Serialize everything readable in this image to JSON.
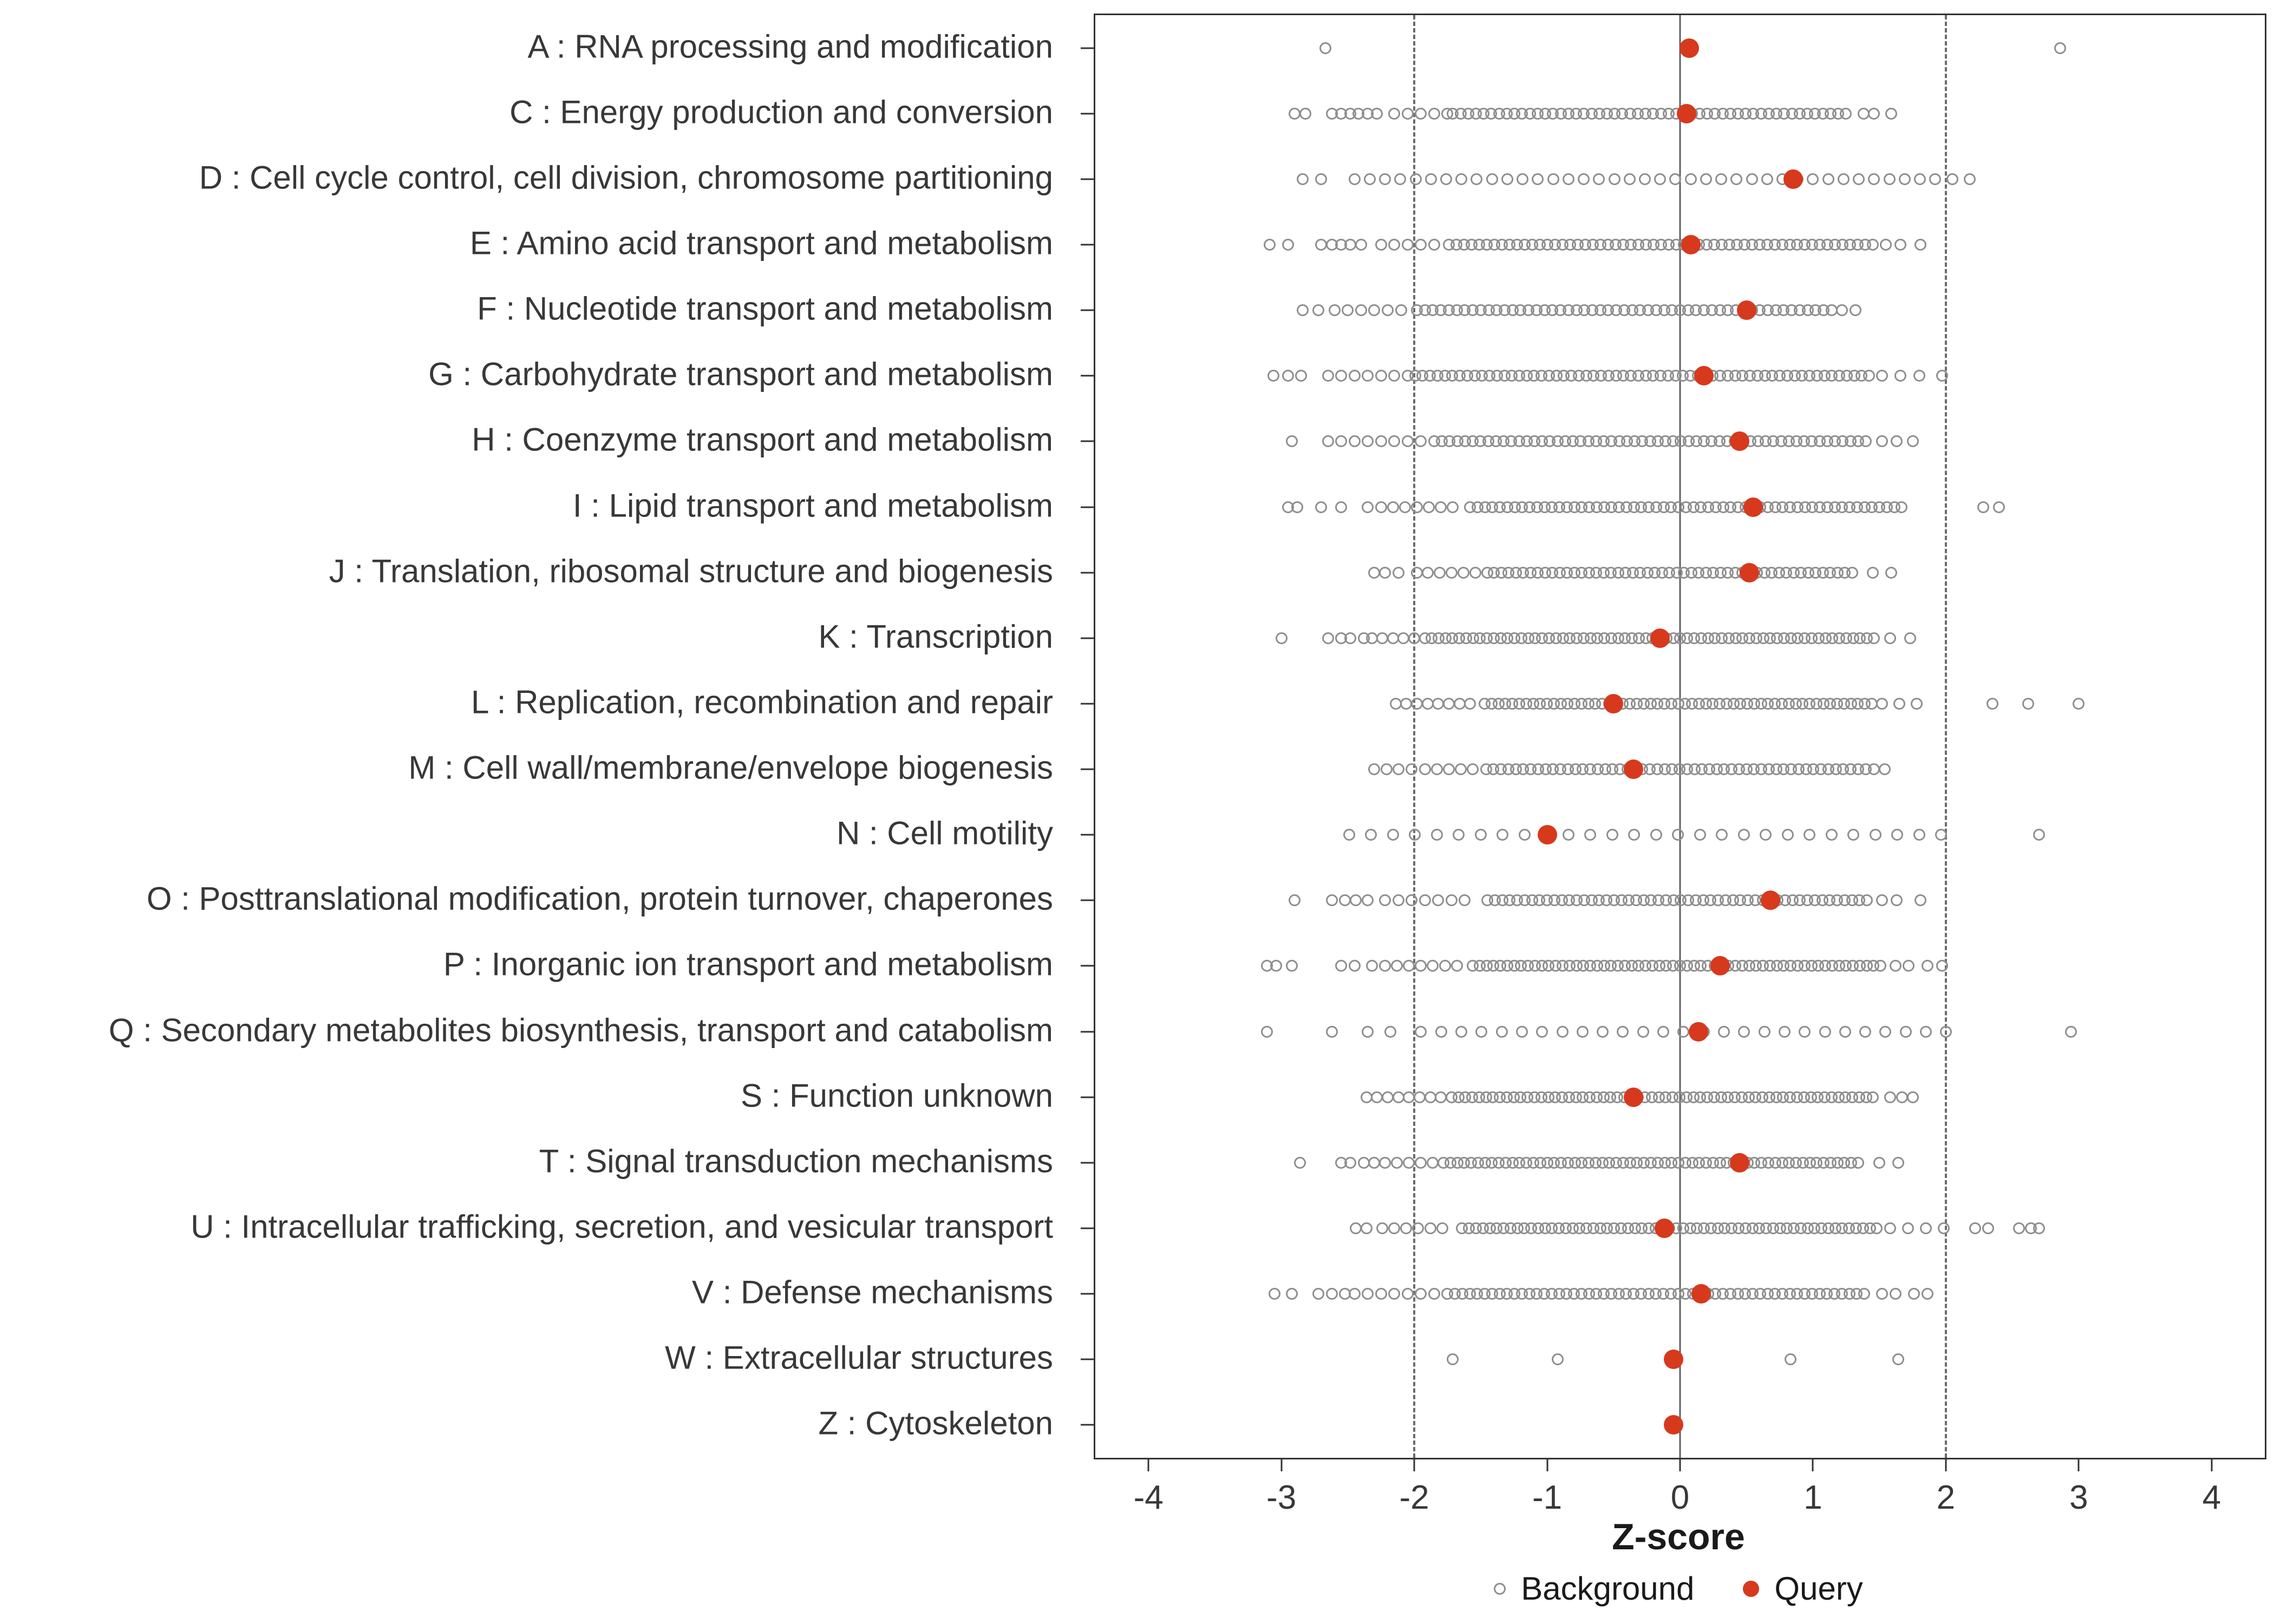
{
  "figure": {
    "xlabel": "Z-score",
    "legend": {
      "background_label": "Background",
      "query_label": "Query"
    }
  },
  "colors": {
    "query": "#d7391d",
    "background_stroke": "#8f8f8f",
    "axis": "#333333",
    "refline": "#5f5f5f"
  },
  "chart_data": {
    "type": "scatter",
    "title": "",
    "xlabel": "Z-score",
    "ylabel": "",
    "xlim": [
      -4.4,
      4.4
    ],
    "xticks": [
      -4,
      -3,
      -2,
      -1,
      0,
      1,
      2,
      3,
      4
    ],
    "grid": false,
    "legend_position": "bottom",
    "reference_lines": [
      {
        "x": -2,
        "style": "dashed"
      },
      {
        "x": 0,
        "style": "solid"
      },
      {
        "x": 2,
        "style": "dashed"
      }
    ],
    "series_names": [
      "Background",
      "Query"
    ],
    "categories": [
      {
        "label": "A : RNA processing and modification",
        "query": 0.07,
        "background": {
          "singles": [
            -2.67,
            2.86
          ],
          "runs": []
        }
      },
      {
        "label": "C : Energy production and conversion",
        "query": 0.05,
        "background": {
          "singles": [
            -2.9,
            -2.82,
            -2.62,
            -2.55,
            -2.48,
            -2.42,
            -2.35,
            -2.28,
            -2.15,
            1.38,
            1.46,
            1.59
          ],
          "runs": [
            [
              -2.05,
              -1.75,
              0.1
            ],
            [
              -1.71,
              1.28,
              0.058
            ]
          ]
        }
      },
      {
        "label": "D : Cell cycle control, cell division, chromosome partitioning",
        "query": 0.85,
        "background": {
          "singles": [
            -2.84,
            -2.7,
            2.05,
            2.18
          ],
          "runs": [
            [
              -2.45,
              1.95,
              0.115
            ]
          ]
        }
      },
      {
        "label": "E : Amino acid transport and metabolism",
        "query": 0.08,
        "background": {
          "singles": [
            -3.09,
            -2.95,
            -2.7,
            -2.62,
            -2.55,
            -2.48,
            -2.4,
            1.55,
            1.66,
            1.81
          ],
          "runs": [
            [
              -2.25,
              -1.8,
              0.1
            ],
            [
              -1.74,
              1.48,
              0.057
            ]
          ]
        }
      },
      {
        "label": "F : Nucleotide transport and metabolism",
        "query": 0.5,
        "background": {
          "singles": [
            -2.84,
            -2.72,
            1.22,
            1.32
          ],
          "runs": [
            [
              -2.6,
              -2.05,
              0.1
            ],
            [
              -1.98,
              1.16,
              0.06
            ]
          ]
        }
      },
      {
        "label": "G : Carbohydrate transport and metabolism",
        "query": 0.18,
        "background": {
          "singles": [
            -3.06,
            -2.95,
            -2.85,
            1.52,
            1.66,
            1.8,
            1.97
          ],
          "runs": [
            [
              -2.65,
              -2.15,
              0.1
            ],
            [
              -2.05,
              1.45,
              0.056
            ]
          ]
        }
      },
      {
        "label": "H : Coenzyme transport and metabolism",
        "query": 0.45,
        "background": {
          "singles": [
            -2.92,
            -2.65,
            -2.55,
            -2.45,
            1.52,
            1.63,
            1.75
          ],
          "runs": [
            [
              -2.35,
              -1.95,
              0.1
            ],
            [
              -1.85,
              1.42,
              0.058
            ]
          ]
        }
      },
      {
        "label": "I : Lipid transport and metabolism",
        "query": 0.55,
        "background": {
          "singles": [
            -2.95,
            -2.88,
            -2.7,
            -2.55,
            -2.35,
            2.28,
            2.4
          ],
          "runs": [
            [
              -2.25,
              -1.65,
              0.09
            ],
            [
              -1.58,
              1.72,
              0.056
            ]
          ]
        }
      },
      {
        "label": "J : Translation, ribosomal structure and biogenesis",
        "query": 0.52,
        "background": {
          "singles": [
            -2.3,
            -2.22,
            -2.12,
            -1.98,
            1.45,
            1.59
          ],
          "runs": [
            [
              -1.9,
              -1.45,
              0.09
            ],
            [
              -1.4,
              1.33,
              0.055
            ]
          ]
        }
      },
      {
        "label": "K : Transcription",
        "query": -0.15,
        "background": {
          "singles": [
            -3.0,
            -2.65,
            -2.55,
            -2.48,
            -2.38,
            1.58,
            1.73
          ],
          "runs": [
            [
              -2.32,
              -1.92,
              0.08
            ],
            [
              -1.87,
              1.48,
              0.052
            ]
          ]
        }
      },
      {
        "label": "L : Replication, recombination and repair",
        "query": -0.5,
        "background": {
          "singles": [
            -2.14,
            -2.06,
            2.35,
            2.62,
            3.0
          ],
          "runs": [
            [
              -1.98,
              -1.52,
              0.08
            ],
            [
              -1.47,
              1.45,
              0.052
            ],
            [
              1.52,
              1.78,
              0.13
            ]
          ]
        }
      },
      {
        "label": "M : Cell wall/membrane/envelope biogenesis",
        "query": -0.35,
        "background": {
          "singles": [
            -2.3,
            -2.21,
            -2.12,
            -2.02,
            1.46,
            1.54
          ],
          "runs": [
            [
              -1.92,
              -1.52,
              0.09
            ],
            [
              -1.46,
              1.4,
              0.056
            ]
          ]
        }
      },
      {
        "label": "N : Cell motility",
        "query": -1.0,
        "background": {
          "singles": [
            2.7
          ],
          "runs": [
            [
              -2.49,
              2.12,
              0.165
            ]
          ]
        }
      },
      {
        "label": "O : Posttranslational modification, protein turnover, chaperones",
        "query": 0.68,
        "background": {
          "singles": [
            -2.9,
            -2.62,
            -2.52,
            -2.44,
            -2.35,
            1.52,
            1.63,
            1.81
          ],
          "runs": [
            [
              -2.22,
              -1.55,
              0.1
            ],
            [
              -1.45,
              1.46,
              0.056
            ]
          ]
        }
      },
      {
        "label": "P : Inorganic ion transport and metabolism",
        "query": 0.3,
        "background": {
          "singles": [
            -3.11,
            -3.04,
            -2.92,
            -2.55,
            -2.45,
            -2.32,
            1.62,
            1.72,
            1.86,
            1.97
          ],
          "runs": [
            [
              -2.22,
              -1.62,
              0.09
            ],
            [
              -1.56,
              1.52,
              0.052
            ]
          ]
        }
      },
      {
        "label": "Q : Secondary metabolites biosynthesis, transport and catabolism",
        "query": 0.14,
        "background": {
          "singles": [
            -3.11,
            -2.62,
            -2.35,
            -2.18,
            2.94
          ],
          "runs": [
            [
              -1.95,
              2.05,
              0.152
            ]
          ]
        }
      },
      {
        "label": "S : Function unknown",
        "query": -0.35,
        "background": {
          "singles": [
            -2.36,
            -2.28,
            1.58,
            1.67,
            1.75
          ],
          "runs": [
            [
              -2.2,
              -1.78,
              0.08
            ],
            [
              -1.72,
              1.5,
              0.052
            ]
          ]
        }
      },
      {
        "label": "T : Signal transduction mechanisms",
        "query": 0.45,
        "background": {
          "singles": [
            -2.86,
            -2.55,
            -2.48,
            -2.38,
            -2.3,
            1.5,
            1.64
          ],
          "runs": [
            [
              -2.22,
              -1.84,
              0.09
            ],
            [
              -1.78,
              1.38,
              0.052
            ]
          ]
        }
      },
      {
        "label": "U : Intracellular trafficking, secretion, and vesicular transport",
        "query": -0.12,
        "background": {
          "singles": [
            -2.44,
            -2.36,
            2.22,
            2.32,
            2.55,
            2.64,
            2.7
          ],
          "runs": [
            [
              -2.24,
              -1.72,
              0.09
            ],
            [
              -1.64,
              1.5,
              0.052
            ],
            [
              1.58,
              2.05,
              0.135
            ]
          ]
        }
      },
      {
        "label": "V : Defense mechanisms",
        "query": 0.16,
        "background": {
          "singles": [
            -3.05,
            -2.92,
            -2.72,
            -2.62,
            -2.52,
            -2.45,
            1.52,
            1.62,
            1.76,
            1.86
          ],
          "runs": [
            [
              -2.35,
              -1.85,
              0.1
            ],
            [
              -1.75,
              1.42,
              0.056
            ]
          ]
        }
      },
      {
        "label": "W : Extracellular structures",
        "query": -0.05,
        "background": {
          "singles": [
            -1.71,
            -0.92,
            0.83,
            1.64
          ],
          "runs": []
        }
      },
      {
        "label": "Z : Cytoskeleton",
        "query": -0.05,
        "background": {
          "singles": [],
          "runs": []
        }
      }
    ]
  }
}
